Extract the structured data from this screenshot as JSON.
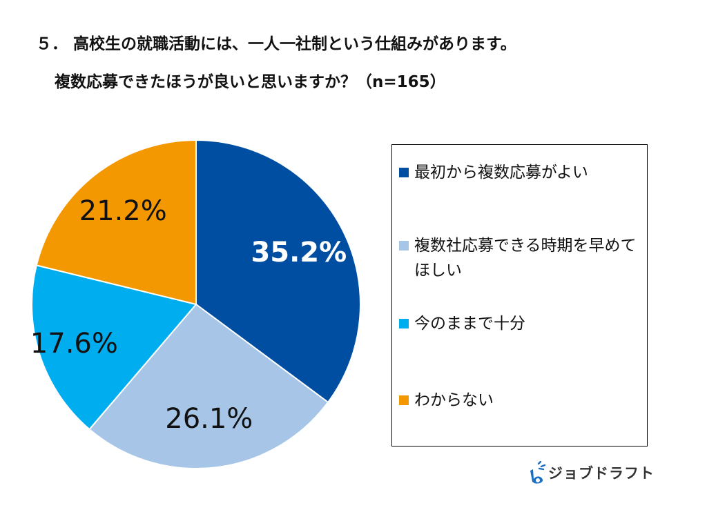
{
  "title": {
    "line1": "５． 高校生の就職活動には、一人一社制という仕組みがあります。",
    "line2": "複数応募できたほうが良いと思いますか？（n=165）"
  },
  "chart_data": {
    "type": "pie",
    "start_angle_deg": 0,
    "direction": "clockwise",
    "slices": [
      {
        "label": "最初から複数応募がよい",
        "value": 35.2,
        "display": "35.2%",
        "color": "#004EA2",
        "label_color": "#ffffff",
        "label_bold": true
      },
      {
        "label": "複数社応募できる時期を早めてほしい",
        "value": 26.1,
        "display": "26.1%",
        "color": "#A7C6E7",
        "label_color": "#111111",
        "label_bold": false
      },
      {
        "label": "今のままで十分",
        "value": 17.6,
        "display": "17.6%",
        "color": "#00ADEF",
        "label_color": "#111111",
        "label_bold": false
      },
      {
        "label": "わからない",
        "value": 21.2,
        "display": "21.2%",
        "color": "#F39800",
        "label_color": "#111111",
        "label_bold": false
      }
    ],
    "legend_position": "right"
  },
  "logo": {
    "text": "ジョブドラフト",
    "icon": "jobdraft-logo-icon",
    "color": "#1A6FC4"
  }
}
